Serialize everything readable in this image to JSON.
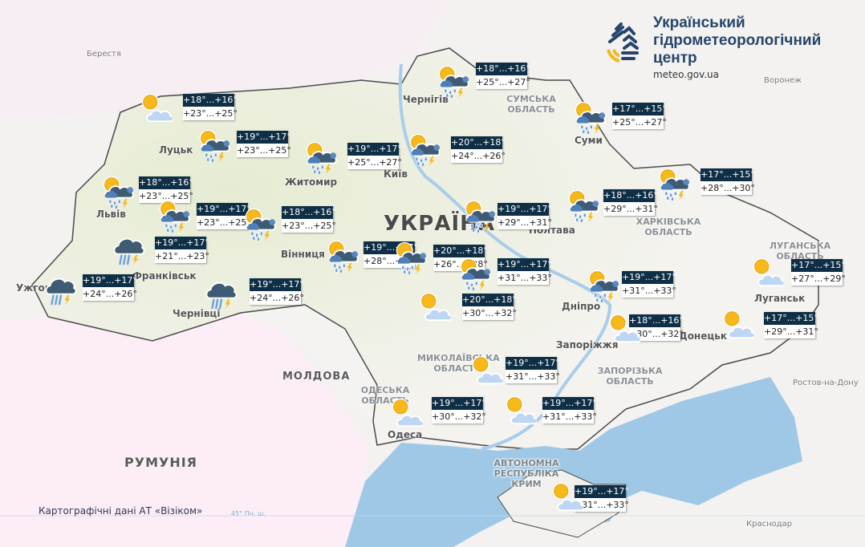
{
  "logo": {
    "name_lines": [
      "Український",
      "гідрометеорологічний",
      "центр"
    ],
    "url": "meteo.gov.ua"
  },
  "credits": "Картографічні дані АТ «Візіком»",
  "colors": {
    "label_header": "#0f2f46",
    "sea": "#9ec8e6",
    "sun": "#f6b91a",
    "logo_blue": "#25456b",
    "logo_yellow": "#f2b820"
  },
  "places": {
    "countries": [
      "УКРАЇНА",
      "МОЛДОВА",
      "РУМУНІЯ"
    ],
    "cities": [
      "Берестя",
      "Луцьк",
      "Житомир",
      "Київ",
      "Чернігів",
      "Суми",
      "Полтава",
      "Львів",
      "Вінниця",
      "Франківськ",
      "Ужгород",
      "Чернівці",
      "Дніпро",
      "Запоріжжя",
      "Донецьк",
      "Луганськ",
      "Одеса",
      "Воронеж",
      "Ростов-на-Дону",
      "Краснодар"
    ],
    "regions": [
      "СУМСЬКА ОБЛАСТЬ",
      "ХАРКІВСЬКА ОБЛАСТЬ",
      "ЗАПОРІЗЬКА ОБЛАСТЬ",
      "МИКОЛАЇВСЬКА ОБЛАСТЬ",
      "ЛУГАНСЬКА ОБЛАСТЬ",
      "ОДЕСЬКА ОБЛАСТЬ",
      "АВТОНОМНА РЕСПУБЛІКА КРИМ"
    ],
    "parallel": "45° Пн. ш."
  },
  "stations": [
    {
      "icon": "sun-cloud",
      "night": "+18°...+16°",
      "day": "+23°...+25°"
    },
    {
      "icon": "sun-cloud-storm",
      "night": "+19°...+17°",
      "day": "+23°...+25°"
    },
    {
      "icon": "sun-cloud-storm",
      "night": "+19°...+17°",
      "day": "+25°...+27°"
    },
    {
      "icon": "sun-cloud-storm",
      "night": "+20°...+18°",
      "day": "+24°...+26°"
    },
    {
      "icon": "sun-cloud-storm",
      "night": "+18°...+16°",
      "day": "+25°...+27°"
    },
    {
      "icon": "sun-cloud-storm",
      "night": "+17°...+15°",
      "day": "+25°...+27°"
    },
    {
      "icon": "sun-cloud-storm",
      "night": "+17°...+15°",
      "day": "+28°...+30°"
    },
    {
      "icon": "sun-cloud-storm",
      "night": "+18°...+16°",
      "day": "+29°...+31°"
    },
    {
      "icon": "sun-cloud-storm",
      "night": "+19°...+17°",
      "day": "+29°...+31°"
    },
    {
      "icon": "sun-cloud-storm",
      "night": "+18°...+16°",
      "day": "+23°...+25°"
    },
    {
      "icon": "sun-cloud-storm",
      "night": "+19°...+17°",
      "day": "+23°...+25°"
    },
    {
      "icon": "sun-cloud-storm",
      "night": "+18°...+16°",
      "day": "+23°...+25°"
    },
    {
      "icon": "rain-storm",
      "night": "+19°...+17°",
      "day": "+21°...+23°"
    },
    {
      "icon": "rain-storm",
      "night": "+19°...+17°",
      "day": "+24°...+26°"
    },
    {
      "icon": "rain-storm",
      "night": "+19°...+17°",
      "day": "+24°...+26°"
    },
    {
      "icon": "sun-cloud-storm",
      "night": "+19°...+17°",
      "day": "+28°...+30°"
    },
    {
      "icon": "sun-cloud-storm",
      "night": "+20°...+18°",
      "day": "+26°...+28°"
    },
    {
      "icon": "sun-cloud-storm",
      "night": "+19°...+17°",
      "day": "+31°...+33°"
    },
    {
      "icon": "sun-cloud",
      "night": "+20°...+18°",
      "day": "+30°...+32°"
    },
    {
      "icon": "sun-cloud-storm",
      "night": "+19°...+17°",
      "day": "+31°...+33°"
    },
    {
      "icon": "sun-cloud",
      "night": "+18°...+16°",
      "day": "+30°...+32°"
    },
    {
      "icon": "sun-cloud",
      "night": "+17°...+15°",
      "day": "+29°...+31°"
    },
    {
      "icon": "sun-cloud",
      "night": "+17°...+15°",
      "day": "+27°...+29°"
    },
    {
      "icon": "sun-cloud",
      "night": "+19°...+17°",
      "day": "+31°...+33°"
    },
    {
      "icon": "sun-cloud",
      "night": "+19°...+17°",
      "day": "+30°...+32°"
    },
    {
      "icon": "sun-cloud",
      "night": "+19°...+17°",
      "day": "+31°...+33°"
    },
    {
      "icon": "sun-cloud",
      "night": "+19°...+17°",
      "day": "+31°...+33°"
    }
  ]
}
